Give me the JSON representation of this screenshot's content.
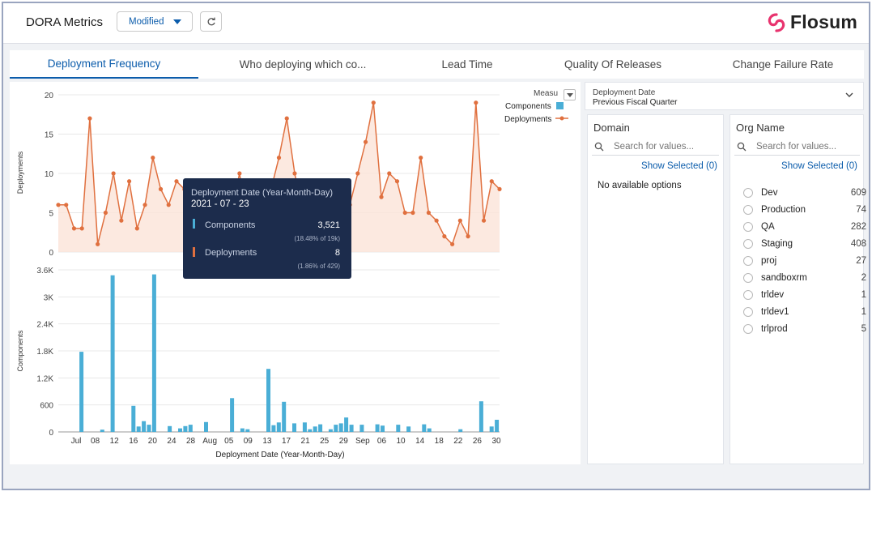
{
  "header": {
    "title": "DORA Metrics",
    "view_select": "Modified",
    "brand": "Flosum"
  },
  "tabs": [
    {
      "label": "Deployment Frequency",
      "active": true
    },
    {
      "label": "Who deploying which co...",
      "active": false
    },
    {
      "label": "Lead Time",
      "active": false
    },
    {
      "label": "Quality Of Releases",
      "active": false
    },
    {
      "label": "Change Failure Rate",
      "active": false
    }
  ],
  "legend": {
    "title": "Measu",
    "items": [
      {
        "label": "Components",
        "color": "#4aaed6"
      },
      {
        "label": "Deployments",
        "color": "#e0703f"
      }
    ]
  },
  "tooltip": {
    "heading": "Deployment Date (Year-Month-Day)",
    "date": "2021 - 07 - 23",
    "rows": [
      {
        "label": "Components",
        "value": "3,521",
        "share": "(18.48% of 19k)"
      },
      {
        "label": "Deployments",
        "value": "8",
        "share": "(1.86% of 429)"
      }
    ]
  },
  "chart_data": {
    "type": "line+bar",
    "xlabel": "Deployment Date (Year-Month-Day)",
    "x_ticks": [
      "Jul",
      "08",
      "12",
      "16",
      "20",
      "24",
      "28",
      "Aug",
      "05",
      "09",
      "13",
      "17",
      "21",
      "25",
      "29",
      "Sep",
      "06",
      "10",
      "14",
      "18",
      "22",
      "26",
      "30"
    ],
    "deployments": {
      "ylabel": "Deployments",
      "y_ticks": [
        "20",
        "15",
        "10",
        "5",
        "0"
      ],
      "ylim": [
        0,
        20
      ],
      "values": [
        6,
        6,
        3,
        3,
        17,
        1,
        5,
        10,
        4,
        9,
        3,
        6,
        12,
        8,
        6,
        9,
        8,
        5,
        4,
        7,
        6,
        8,
        5,
        10,
        4,
        6,
        7,
        8,
        12,
        17,
        10,
        5,
        6,
        7,
        5,
        4,
        4,
        6,
        10,
        14,
        19,
        7,
        10,
        9,
        5,
        5,
        12,
        5,
        4,
        2,
        1,
        4,
        2,
        19,
        4,
        9,
        8
      ]
    },
    "components": {
      "ylabel": "Components",
      "y_ticks": [
        "3.6K",
        "3K",
        "2.4K",
        "1.8K",
        "1.2K",
        "600",
        "0"
      ],
      "ylim": [
        0,
        3600
      ],
      "values": [
        0,
        0,
        0,
        0,
        1780,
        0,
        0,
        0,
        50,
        0,
        3480,
        0,
        0,
        0,
        580,
        120,
        240,
        160,
        3500,
        0,
        0,
        130,
        0,
        80,
        130,
        160,
        0,
        0,
        220,
        0,
        0,
        0,
        0,
        750,
        0,
        80,
        60,
        0,
        0,
        0,
        1400,
        150,
        210,
        670,
        0,
        190,
        0,
        210,
        60,
        120,
        170,
        0,
        60,
        160,
        190,
        320,
        160,
        0,
        160,
        0,
        0,
        170,
        140,
        0,
        0,
        160,
        0,
        120,
        0,
        0,
        170,
        80,
        0,
        0,
        0,
        0,
        0,
        60,
        0,
        0,
        0,
        680,
        0,
        120,
        270
      ]
    }
  },
  "filters": {
    "date": {
      "label": "Deployment Date",
      "value": "Previous Fiscal Quarter"
    },
    "domain": {
      "title": "Domain",
      "search_placeholder": "Search for values...",
      "show_selected": "Show Selected (0)",
      "empty": "No available options"
    },
    "org": {
      "title": "Org Name",
      "search_placeholder": "Search for values...",
      "show_selected": "Show Selected (0)",
      "options": [
        {
          "label": "Dev",
          "count": "609"
        },
        {
          "label": "Production",
          "count": "74"
        },
        {
          "label": "QA",
          "count": "282"
        },
        {
          "label": "Staging",
          "count": "408"
        },
        {
          "label": "proj",
          "count": "27"
        },
        {
          "label": "sandboxrm",
          "count": "2"
        },
        {
          "label": "trldev",
          "count": "1"
        },
        {
          "label": "trldev1",
          "count": "1"
        },
        {
          "label": "trlprod",
          "count": "5"
        }
      ]
    }
  }
}
